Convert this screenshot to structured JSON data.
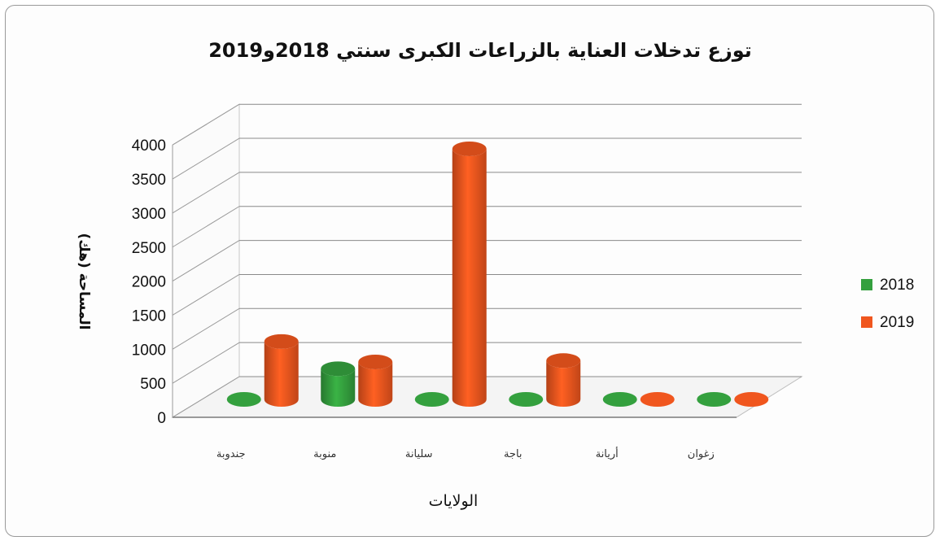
{
  "chart_data": {
    "type": "bar",
    "style": "3d-cylinder",
    "title": "توزع تدخلات العناية بالزراعات الكبرى سنتي 2018و2019",
    "xlabel": "الولايات",
    "ylabel": "المساحة (هك)",
    "categories": [
      "جندوبة",
      "منوبة",
      "سليانة",
      "باجة",
      "أريانة",
      "زغوان"
    ],
    "series": [
      {
        "name": "2018",
        "color": "#34a03e",
        "values": [
          0,
          450,
          0,
          0,
          0,
          0
        ]
      },
      {
        "name": "2019",
        "color": "#f0561e",
        "values": [
          850,
          550,
          3680,
          570,
          0,
          0
        ]
      }
    ],
    "ylim": [
      0,
      4000
    ],
    "yticks": [
      "0",
      "500",
      "1000",
      "1500",
      "2000",
      "2500",
      "3000",
      "3500",
      "4000"
    ],
    "grid": true,
    "legend_position": "right"
  }
}
